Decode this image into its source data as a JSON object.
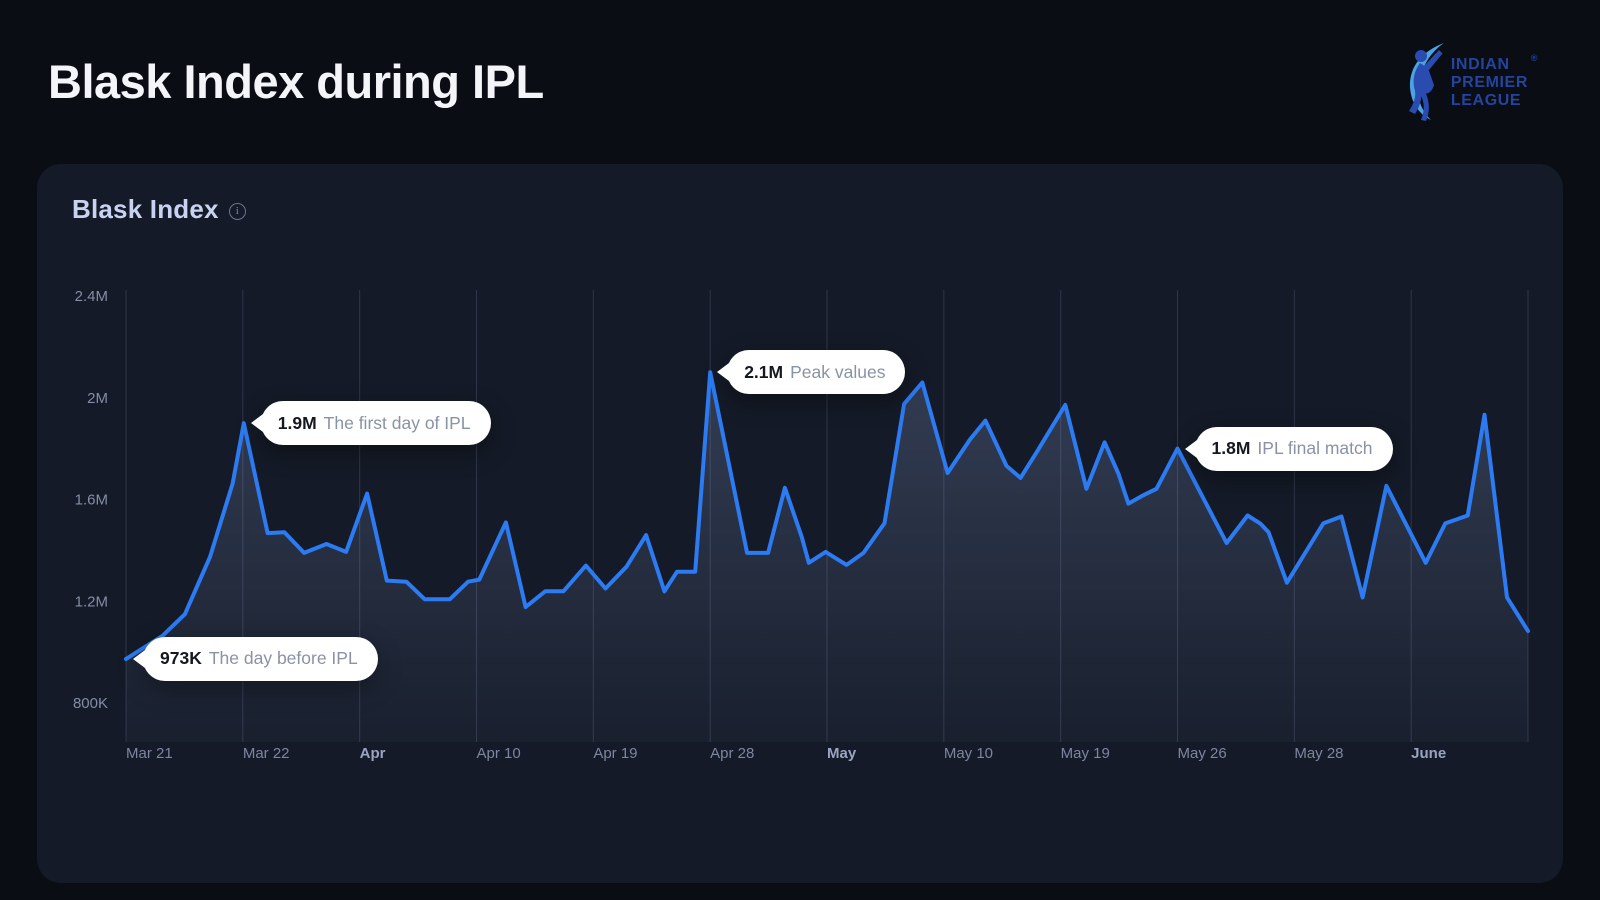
{
  "header": {
    "title": "Blask Index during IPL",
    "logo": {
      "line1": "INDIAN",
      "line2": "PREMIER",
      "line3": "LEAGUE",
      "registered": "®"
    }
  },
  "card": {
    "title": "Blask Index",
    "info_icon_glyph": "i"
  },
  "chart_data": {
    "type": "area",
    "title": "Blask Index",
    "xlabel": "",
    "ylabel": "",
    "ylim_thousands": [
      800,
      2400
    ],
    "grid": "vertical-only",
    "legend": "none",
    "y_ticks": [
      {
        "label": "2.4M",
        "value_k": 2400
      },
      {
        "label": "2M",
        "value_k": 2000
      },
      {
        "label": "1.6M",
        "value_k": 1600
      },
      {
        "label": "1.2M",
        "value_k": 1200
      },
      {
        "label": "800K",
        "value_k": 800
      }
    ],
    "x_ticks": [
      {
        "label": "Mar 21",
        "bold": false
      },
      {
        "label": "Mar 22",
        "bold": false
      },
      {
        "label": "Apr",
        "bold": true
      },
      {
        "label": "Apr 10",
        "bold": false
      },
      {
        "label": "Apr 19",
        "bold": false
      },
      {
        "label": "Apr 28",
        "bold": false
      },
      {
        "label": "May",
        "bold": true
      },
      {
        "label": "May 10",
        "bold": false
      },
      {
        "label": "May 19",
        "bold": false
      },
      {
        "label": "May 26",
        "bold": false
      },
      {
        "label": "May 28",
        "bold": false
      },
      {
        "label": "June",
        "bold": true
      }
    ],
    "points_format": "[x_percent_across_plot, blask_index_thousands]",
    "series": [
      {
        "name": "Blask Index",
        "points": [
          [
            0.0,
            973
          ],
          [
            2.6,
            1064
          ],
          [
            4.2,
            1149
          ],
          [
            6.0,
            1375
          ],
          [
            7.6,
            1662
          ],
          [
            8.4,
            1900
          ],
          [
            10.1,
            1468
          ],
          [
            11.3,
            1471
          ],
          [
            12.7,
            1390
          ],
          [
            14.3,
            1425
          ],
          [
            15.7,
            1394
          ],
          [
            17.2,
            1623
          ],
          [
            18.6,
            1281
          ],
          [
            20.0,
            1277
          ],
          [
            21.3,
            1208
          ],
          [
            23.1,
            1208
          ],
          [
            24.4,
            1277
          ],
          [
            25.2,
            1285
          ],
          [
            27.1,
            1510
          ],
          [
            28.5,
            1177
          ],
          [
            29.9,
            1239
          ],
          [
            31.2,
            1239
          ],
          [
            32.8,
            1340
          ],
          [
            34.2,
            1250
          ],
          [
            35.7,
            1336
          ],
          [
            37.1,
            1460
          ],
          [
            38.4,
            1239
          ],
          [
            39.3,
            1316
          ],
          [
            40.6,
            1316
          ],
          [
            41.67,
            2100
          ],
          [
            44.3,
            1390
          ],
          [
            45.8,
            1390
          ],
          [
            47.0,
            1646
          ],
          [
            48.2,
            1452
          ],
          [
            48.7,
            1351
          ],
          [
            49.9,
            1394
          ],
          [
            51.4,
            1343
          ],
          [
            52.6,
            1390
          ],
          [
            54.1,
            1507
          ],
          [
            55.5,
            1976
          ],
          [
            56.8,
            2060
          ],
          [
            58.6,
            1704
          ],
          [
            60.2,
            1836
          ],
          [
            61.3,
            1910
          ],
          [
            62.8,
            1732
          ],
          [
            63.8,
            1685
          ],
          [
            65.0,
            1790
          ],
          [
            67.0,
            1972
          ],
          [
            68.5,
            1642
          ],
          [
            69.8,
            1825
          ],
          [
            70.8,
            1700
          ],
          [
            71.5,
            1584
          ],
          [
            72.5,
            1615
          ],
          [
            73.5,
            1642
          ],
          [
            75.0,
            1800
          ],
          [
            78.5,
            1429
          ],
          [
            80.0,
            1537
          ],
          [
            80.9,
            1506
          ],
          [
            81.5,
            1471
          ],
          [
            82.8,
            1273
          ],
          [
            85.4,
            1506
          ],
          [
            86.7,
            1533
          ],
          [
            88.2,
            1215
          ],
          [
            89.9,
            1654
          ],
          [
            92.7,
            1351
          ],
          [
            94.1,
            1506
          ],
          [
            95.7,
            1537
          ],
          [
            96.9,
            1933
          ],
          [
            98.5,
            1215
          ],
          [
            100.0,
            1083
          ]
        ]
      }
    ],
    "annotations": [
      {
        "point_index": 0,
        "value_label": "973K",
        "text": "The day before IPL"
      },
      {
        "point_index": 5,
        "value_label": "1.9M",
        "text": "The first day of IPL"
      },
      {
        "point_index": 29,
        "value_label": "2.1M",
        "text": "Peak values"
      },
      {
        "point_index": 54,
        "value_label": "1.8M",
        "text": "IPL final match"
      }
    ],
    "colors": {
      "line": "#2C7BF2",
      "area_top": "rgba(140,162,210,0.30)",
      "area_bottom": "rgba(140,162,210,0.04)",
      "grid": "#30364a",
      "tick_label": "#848da6",
      "tick_label_bold": "#9aa4c2",
      "tooltip_bg": "#FFFFFF",
      "tooltip_value": "#15181f",
      "tooltip_text": "#8a92a6",
      "card_bg": "#141a27",
      "page_bg": "#0a0d14"
    }
  }
}
